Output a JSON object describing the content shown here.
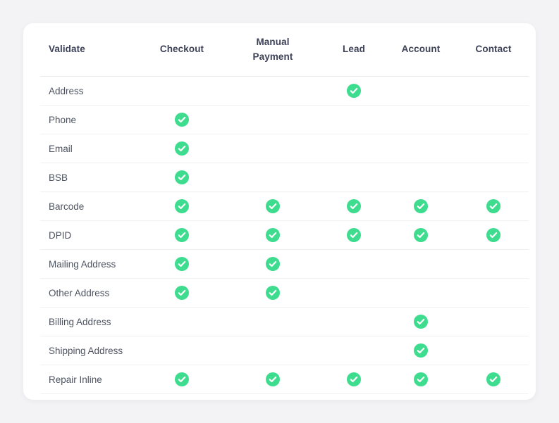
{
  "theme": {
    "page_background": "#f3f3f6",
    "card_background": "#ffffff",
    "header_text_color": "#3e4257",
    "row_text_color": "#4d5360",
    "check_color": "#3ddc8e",
    "divider_color": "#f0f1f4"
  },
  "table": {
    "columns": [
      "Validate",
      "Checkout",
      "Manual Payment",
      "Lead",
      "Account",
      "Contact"
    ],
    "rows": [
      {
        "label": "Address",
        "checks": [
          false,
          false,
          true,
          false,
          false
        ]
      },
      {
        "label": "Phone",
        "checks": [
          true,
          false,
          false,
          false,
          false
        ]
      },
      {
        "label": "Email",
        "checks": [
          true,
          false,
          false,
          false,
          false
        ]
      },
      {
        "label": "BSB",
        "checks": [
          true,
          false,
          false,
          false,
          false
        ]
      },
      {
        "label": "Barcode",
        "checks": [
          true,
          true,
          true,
          true,
          true
        ]
      },
      {
        "label": "DPID",
        "checks": [
          true,
          true,
          true,
          true,
          true
        ]
      },
      {
        "label": "Mailing Address",
        "checks": [
          true,
          true,
          false,
          false,
          false
        ]
      },
      {
        "label": "Other Address",
        "checks": [
          true,
          true,
          false,
          false,
          false
        ]
      },
      {
        "label": "Billing Address",
        "checks": [
          false,
          false,
          false,
          true,
          false
        ]
      },
      {
        "label": "Shipping Address",
        "checks": [
          false,
          false,
          false,
          true,
          false
        ]
      },
      {
        "label": "Repair Inline",
        "checks": [
          true,
          true,
          true,
          true,
          true
        ]
      }
    ]
  }
}
